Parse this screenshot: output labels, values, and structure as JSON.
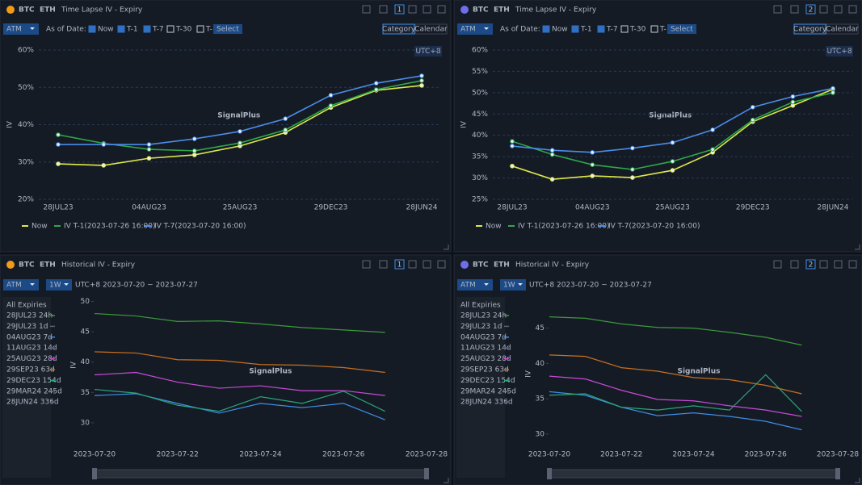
{
  "panels": [
    {
      "coins": [
        "BTC",
        "ETH"
      ],
      "active": 0,
      "title": "Time Lapse IV - Expiry",
      "badge": "1",
      "selector": "ATM",
      "as_of_label": "As of Date:",
      "checks": [
        {
          "label": "Now",
          "checked": true
        },
        {
          "label": "T-1",
          "checked": true
        },
        {
          "label": "T-7",
          "checked": true
        },
        {
          "label": "T-30",
          "checked": false
        },
        {
          "label": "T-",
          "checked": false
        }
      ],
      "input": "Select",
      "views": [
        "Category",
        "Calendar"
      ],
      "timezone": "UTC+8",
      "watermark": "SignalPlus"
    },
    {
      "coins": [
        "BTC",
        "ETH"
      ],
      "active": 1,
      "title": "Time Lapse IV - Expiry",
      "badge": "2",
      "selector": "ATM",
      "as_of_label": "As of Date:",
      "checks": [
        {
          "label": "Now",
          "checked": true
        },
        {
          "label": "T-1",
          "checked": true
        },
        {
          "label": "T-7",
          "checked": true
        },
        {
          "label": "T-30",
          "checked": false
        },
        {
          "label": "T-",
          "checked": false
        }
      ],
      "input": "Select",
      "views": [
        "Category",
        "Calendar"
      ],
      "timezone": "UTC+8",
      "watermark": "SignalPlus"
    },
    {
      "coins": [
        "BTC",
        "ETH"
      ],
      "active": 0,
      "title": "Historical IV - Expiry",
      "badge": "1",
      "selector": "ATM",
      "period": "1W",
      "range": "UTC+8 2023-07-20 ~ 2023-07-27",
      "watermark": "SignalPlus"
    },
    {
      "coins": [
        "BTC",
        "ETH"
      ],
      "active": 1,
      "title": "Historical IV - Expiry",
      "badge": "2",
      "selector": "ATM",
      "period": "1W",
      "range": "UTC+8 2023-07-20 ~ 2023-07-27",
      "watermark": "SignalPlus"
    }
  ],
  "chart_data": [
    {
      "type": "line",
      "y_label": "IV",
      "categories": [
        "28JUL23",
        null,
        "04AUG23",
        null,
        "25AUG23",
        null,
        "29DEC23",
        null,
        "28JUN24"
      ],
      "ylim": [
        20,
        60
      ],
      "yticks": [
        {
          "value": 20,
          "label": "20%"
        },
        {
          "value": 30,
          "label": "30%"
        },
        {
          "value": 40,
          "label": "40%"
        },
        {
          "value": 50,
          "label": "50%"
        },
        {
          "value": 60,
          "label": "60%"
        }
      ],
      "grid": true,
      "series": [
        {
          "name": "Now",
          "color": "#dfe84a",
          "values": [
            29.5,
            29.1,
            31,
            31.9,
            34.3,
            37.9,
            44.6,
            49.2,
            50.5
          ]
        },
        {
          "name": "IV T-1",
          "as_of": "(2023-07-26 16:00)",
          "color": "#2ea84a",
          "values": [
            37.3,
            35,
            33.4,
            33,
            35.1,
            38.6,
            45.1,
            49.4,
            51.8
          ]
        },
        {
          "name": "IV T-7",
          "as_of": "(2023-07-20 16:00)",
          "color": "#4a8ce8",
          "values": [
            34.7,
            34.7,
            34.7,
            36.2,
            38.2,
            41.6,
            47.9,
            51.1,
            53.1
          ]
        }
      ]
    },
    {
      "type": "line",
      "y_label": "IV",
      "categories": [
        "28JUL23",
        null,
        "04AUG23",
        null,
        "25AUG23",
        null,
        "29DEC23",
        null,
        "28JUN24"
      ],
      "ylim": [
        25,
        60
      ],
      "yticks": [
        {
          "value": 25,
          "label": "25%"
        },
        {
          "value": 30,
          "label": "30%"
        },
        {
          "value": 35,
          "label": "35%"
        },
        {
          "value": 40,
          "label": "40%"
        },
        {
          "value": 45,
          "label": "45%"
        },
        {
          "value": 50,
          "label": "50%"
        },
        {
          "value": 55,
          "label": "55%"
        },
        {
          "value": 60,
          "label": "60%"
        }
      ],
      "grid": true,
      "series": [
        {
          "name": "Now",
          "color": "#dfe84a",
          "values": [
            32.8,
            29.7,
            30.5,
            30.1,
            31.8,
            36,
            43.2,
            47,
            50.8
          ]
        },
        {
          "name": "IV T-1",
          "as_of": "(2023-07-26 16:00)",
          "color": "#2ea84a",
          "values": [
            38.6,
            35.5,
            33.1,
            32,
            33.9,
            36.7,
            43.6,
            47.8,
            50
          ]
        },
        {
          "name": "IV T-7",
          "as_of": "(2023-07-20 16:00)",
          "color": "#4a8ce8",
          "values": [
            37.5,
            36.5,
            36,
            37,
            38.3,
            41.3,
            46.6,
            49.1,
            51
          ]
        }
      ]
    },
    {
      "type": "timeseries",
      "y_label": "IV",
      "legend_title": "All Expiries",
      "x": [
        "2023-07-20",
        "2023-07-21",
        "2023-07-22",
        "2023-07-23",
        "2023-07-24",
        "2023-07-25",
        "2023-07-26",
        "2023-07-27"
      ],
      "xlim": [
        "2023-07-20",
        "2023-07-28"
      ],
      "xticks": [
        "2023-07-20",
        "2023-07-22",
        "2023-07-24",
        "2023-07-26",
        "2023-07-28"
      ],
      "ylim": [
        28,
        51
      ],
      "yticks": [
        30,
        35,
        40,
        45,
        50
      ],
      "grid": false,
      "series": [
        {
          "name": "28JUL23 24h",
          "color": "#3c9a3c",
          "visible": true,
          "values": [
            48,
            47.6,
            46.7,
            46.8,
            46.3,
            45.7,
            45.3,
            44.9
          ]
        },
        {
          "name": "29JUL23 1d",
          "color": "#5a6272",
          "visible": false
        },
        {
          "name": "04AUG23 7d",
          "color": "#3d8ee6",
          "visible": true,
          "values": [
            34.5,
            34.8,
            33.2,
            31.6,
            33.2,
            32.5,
            33.2,
            30.5
          ]
        },
        {
          "name": "11AUG23 14d",
          "color": "#5a6272",
          "visible": false
        },
        {
          "name": "25AUG23 28d",
          "color": "#c84ad8",
          "visible": true,
          "values": [
            37.9,
            38.3,
            36.7,
            35.7,
            36.1,
            35.3,
            35.3,
            34.5
          ]
        },
        {
          "name": "29SEP23 63d",
          "color": "#c8701e",
          "visible": true,
          "values": [
            41.7,
            41.5,
            40.4,
            40.3,
            39.6,
            39.5,
            39.1,
            38.3
          ]
        },
        {
          "name": "29DEC23 154d",
          "color": "#2aa67a",
          "visible": true,
          "values": [
            35.5,
            34.9,
            32.9,
            31.9,
            34.3,
            33.2,
            35.2,
            31.9
          ]
        },
        {
          "name": "29MAR24 245d",
          "color": "#5a6272",
          "visible": false
        },
        {
          "name": "28JUN24 336d",
          "color": "#5a6272",
          "visible": false
        }
      ]
    },
    {
      "type": "timeseries",
      "y_label": "IV",
      "legend_title": "All Expiries",
      "x": [
        "2023-07-20",
        "2023-07-21",
        "2023-07-22",
        "2023-07-23",
        "2023-07-24",
        "2023-07-25",
        "2023-07-26",
        "2023-07-27"
      ],
      "xlim": [
        "2023-07-20",
        "2023-07-28"
      ],
      "xticks": [
        "2023-07-20",
        "2023-07-22",
        "2023-07-24",
        "2023-07-26",
        "2023-07-28"
      ],
      "ylim": [
        28.5,
        48.5
      ],
      "yticks": [
        30,
        35,
        40,
        45
      ],
      "grid": false,
      "series": [
        {
          "name": "28JUL23 24h",
          "color": "#3c9a3c",
          "visible": true,
          "values": [
            46.6,
            46.4,
            45.6,
            45.1,
            45,
            44.4,
            43.7,
            42.6
          ]
        },
        {
          "name": "29JUL23 1d",
          "color": "#5a6272",
          "visible": false
        },
        {
          "name": "04AUG23 7d",
          "color": "#3d8ee6",
          "visible": true,
          "values": [
            36,
            35.5,
            33.8,
            32.6,
            33,
            32.5,
            31.8,
            30.6
          ]
        },
        {
          "name": "11AUG23 14d",
          "color": "#5a6272",
          "visible": false
        },
        {
          "name": "25AUG23 28d",
          "color": "#c84ad8",
          "visible": true,
          "values": [
            38.2,
            37.8,
            36.2,
            34.9,
            34.7,
            34,
            33.4,
            32.5
          ]
        },
        {
          "name": "29SEP23 63d",
          "color": "#c8701e",
          "visible": true,
          "values": [
            41.2,
            41,
            39.4,
            38.9,
            38,
            37.7,
            36.9,
            35.7
          ]
        },
        {
          "name": "29DEC23 154d",
          "color": "#2aa67a",
          "visible": true,
          "values": [
            35.5,
            35.7,
            33.8,
            33.4,
            34,
            33.4,
            38.4,
            33.2
          ]
        },
        {
          "name": "29MAR24 245d",
          "color": "#5a6272",
          "visible": false
        },
        {
          "name": "28JUN24 336d",
          "color": "#5a6272",
          "visible": false
        }
      ]
    }
  ]
}
